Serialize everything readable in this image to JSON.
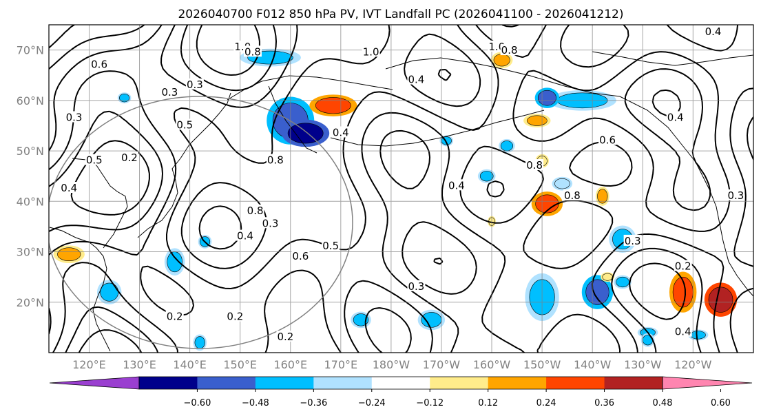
{
  "title": "2026040700 F012 850 hPa PV, IVT Landfall PC (2026041100 - 2026041212)",
  "map": {
    "lon_range": [
      112,
      252
    ],
    "lat_range": [
      10,
      75
    ],
    "lat_ticks": [
      {
        "value": 70,
        "label": "70°N"
      },
      {
        "value": 60,
        "label": "60°N"
      },
      {
        "value": 50,
        "label": "50°N"
      },
      {
        "value": 40,
        "label": "40°N"
      },
      {
        "value": 30,
        "label": "30°N"
      },
      {
        "value": 20,
        "label": "20°N"
      }
    ],
    "lon_ticks": [
      {
        "value": 120,
        "label": "120°E"
      },
      {
        "value": 130,
        "label": "130°E"
      },
      {
        "value": 140,
        "label": "140°E"
      },
      {
        "value": 150,
        "label": "150°E"
      },
      {
        "value": 160,
        "label": "160°E"
      },
      {
        "value": 170,
        "label": "170°E"
      },
      {
        "value": 180,
        "label": "180°W"
      },
      {
        "value": 190,
        "label": "170°W"
      },
      {
        "value": 200,
        "label": "160°W"
      },
      {
        "value": 210,
        "label": "150°W"
      },
      {
        "value": 220,
        "label": "140°W"
      },
      {
        "value": 230,
        "label": "130°W"
      },
      {
        "value": 240,
        "label": "120°W"
      }
    ],
    "contour_labels": [
      {
        "text": "1.0",
        "lon": 150.5,
        "lat": 70.5
      },
      {
        "text": "0.8",
        "lon": 152.5,
        "lat": 69.5
      },
      {
        "text": "1.0",
        "lon": 176,
        "lat": 69.5
      },
      {
        "text": "1.0",
        "lon": 201,
        "lat": 70.5
      },
      {
        "text": "0.8",
        "lon": 203.5,
        "lat": 69.8
      },
      {
        "text": "0.4",
        "lon": 244,
        "lat": 73.5
      },
      {
        "text": "0.6",
        "lon": 122,
        "lat": 67
      },
      {
        "text": "0.3",
        "lon": 136,
        "lat": 61.5
      },
      {
        "text": "0.3",
        "lon": 141,
        "lat": 63
      },
      {
        "text": "0.4",
        "lon": 185,
        "lat": 64
      },
      {
        "text": "0.4",
        "lon": 236.5,
        "lat": 56.5
      },
      {
        "text": "0.3",
        "lon": 117,
        "lat": 56.5
      },
      {
        "text": "0.5",
        "lon": 139,
        "lat": 55
      },
      {
        "text": "0.4",
        "lon": 170,
        "lat": 53.5
      },
      {
        "text": "0.6",
        "lon": 223,
        "lat": 52
      },
      {
        "text": "0.4",
        "lon": 193,
        "lat": 43
      },
      {
        "text": "0.5",
        "lon": 121,
        "lat": 48
      },
      {
        "text": "0.2",
        "lon": 128,
        "lat": 48.5
      },
      {
        "text": "0.8",
        "lon": 157,
        "lat": 48
      },
      {
        "text": "0.4",
        "lon": 116,
        "lat": 42.5
      },
      {
        "text": "0.8",
        "lon": 208.5,
        "lat": 47
      },
      {
        "text": "0.8",
        "lon": 216,
        "lat": 41
      },
      {
        "text": "0.3",
        "lon": 248.5,
        "lat": 41
      },
      {
        "text": "0.8",
        "lon": 153,
        "lat": 38
      },
      {
        "text": "0.3",
        "lon": 156,
        "lat": 35.5
      },
      {
        "text": "0.4",
        "lon": 151,
        "lat": 33
      },
      {
        "text": "0.5",
        "lon": 168,
        "lat": 31
      },
      {
        "text": "0.6",
        "lon": 162,
        "lat": 29
      },
      {
        "text": "0.3",
        "lon": 228,
        "lat": 32
      },
      {
        "text": "0.2",
        "lon": 238,
        "lat": 27
      },
      {
        "text": "0.3",
        "lon": 185,
        "lat": 23
      },
      {
        "text": "0.2",
        "lon": 137,
        "lat": 17
      },
      {
        "text": "0.2",
        "lon": 149,
        "lat": 17
      },
      {
        "text": "0.2",
        "lon": 159,
        "lat": 13
      },
      {
        "text": "0.4",
        "lon": 238,
        "lat": 14
      }
    ]
  },
  "colorbar": {
    "colors": [
      "#9a3fd0",
      "#00008b",
      "#3a5fcd",
      "#00bfff",
      "#b0e2ff",
      "#ffffff",
      "#ffec8b",
      "#ffa500",
      "#ff4500",
      "#b22222",
      "#ff85b0"
    ],
    "ticks": [
      "−0.60",
      "−0.48",
      "−0.36",
      "−0.24",
      "−0.12",
      "0.12",
      "0.24",
      "0.36",
      "0.48",
      "0.60"
    ]
  },
  "blobs": [
    {
      "lon": 156,
      "lat": 68.5,
      "rx": 4.5,
      "ry": 1.3,
      "level": 3
    },
    {
      "lon": 160,
      "lat": 56,
      "rx": 3.5,
      "ry": 3.5,
      "level": 2
    },
    {
      "lon": 163,
      "lat": 53.5,
      "rx": 3.5,
      "ry": 2.0,
      "level": 1
    },
    {
      "lon": 168.5,
      "lat": 59,
      "rx": 3.5,
      "ry": 1.6,
      "level": 8
    },
    {
      "lon": 218,
      "lat": 60,
      "rx": 5.0,
      "ry": 1.5,
      "level": 3
    },
    {
      "lon": 211,
      "lat": 60.5,
      "rx": 1.8,
      "ry": 1.5,
      "level": 2
    },
    {
      "lon": 202,
      "lat": 68,
      "rx": 1.6,
      "ry": 1.2,
      "level": 7
    },
    {
      "lon": 209,
      "lat": 56,
      "rx": 2.0,
      "ry": 1.0,
      "level": 7
    },
    {
      "lon": 211,
      "lat": 39.5,
      "rx": 2.3,
      "ry": 1.8,
      "level": 8
    },
    {
      "lon": 222,
      "lat": 41,
      "rx": 1.0,
      "ry": 1.4,
      "level": 7
    },
    {
      "lon": 116,
      "lat": 29.5,
      "rx": 2.3,
      "ry": 1.3,
      "level": 7
    },
    {
      "lon": 238,
      "lat": 22,
      "rx": 2.0,
      "ry": 3.0,
      "level": 8
    },
    {
      "lon": 245.5,
      "lat": 20.5,
      "rx": 2.4,
      "ry": 2.5,
      "level": 9
    },
    {
      "lon": 210,
      "lat": 21,
      "rx": 2.5,
      "ry": 3.5,
      "level": 3
    },
    {
      "lon": 221,
      "lat": 22,
      "rx": 2.3,
      "ry": 2.5,
      "level": 2
    },
    {
      "lon": 226,
      "lat": 32.5,
      "rx": 2.0,
      "ry": 2.0,
      "level": 3
    },
    {
      "lon": 124,
      "lat": 22,
      "rx": 1.8,
      "ry": 1.8,
      "level": 3
    },
    {
      "lon": 137,
      "lat": 28,
      "rx": 1.5,
      "ry": 2.0,
      "level": 3
    },
    {
      "lon": 174,
      "lat": 16.5,
      "rx": 1.5,
      "ry": 1.2,
      "level": 3
    },
    {
      "lon": 188,
      "lat": 16.5,
      "rx": 2.0,
      "ry": 1.5,
      "level": 3
    },
    {
      "lon": 214,
      "lat": 43.5,
      "rx": 1.5,
      "ry": 1.0,
      "level": 4
    },
    {
      "lon": 199,
      "lat": 45,
      "rx": 1.3,
      "ry": 1.0,
      "level": 3
    },
    {
      "lon": 203,
      "lat": 51,
      "rx": 1.2,
      "ry": 1.0,
      "level": 3
    },
    {
      "lon": 127,
      "lat": 60.5,
      "rx": 1.0,
      "ry": 0.8,
      "level": 3
    },
    {
      "lon": 191,
      "lat": 52,
      "rx": 1.0,
      "ry": 0.8,
      "level": 3
    },
    {
      "lon": 210,
      "lat": 48,
      "rx": 1.0,
      "ry": 1.0,
      "level": 6
    },
    {
      "lon": 226,
      "lat": 24,
      "rx": 1.3,
      "ry": 1.0,
      "level": 3
    },
    {
      "lon": 241,
      "lat": 13.5,
      "rx": 1.5,
      "ry": 0.8,
      "level": 3
    },
    {
      "lon": 231,
      "lat": 14,
      "rx": 1.5,
      "ry": 0.8,
      "level": 3
    },
    {
      "lon": 142,
      "lat": 12,
      "rx": 1.0,
      "ry": 1.2,
      "level": 3
    },
    {
      "lon": 231,
      "lat": 12.5,
      "rx": 1.0,
      "ry": 1.0,
      "level": 3
    },
    {
      "lon": 143,
      "lat": 32,
      "rx": 1.0,
      "ry": 1.0,
      "level": 3
    },
    {
      "lon": 223,
      "lat": 25,
      "rx": 1.0,
      "ry": 0.7,
      "level": 6
    },
    {
      "lon": 200,
      "lat": 36,
      "rx": 0.6,
      "ry": 0.8,
      "level": 6
    }
  ]
}
